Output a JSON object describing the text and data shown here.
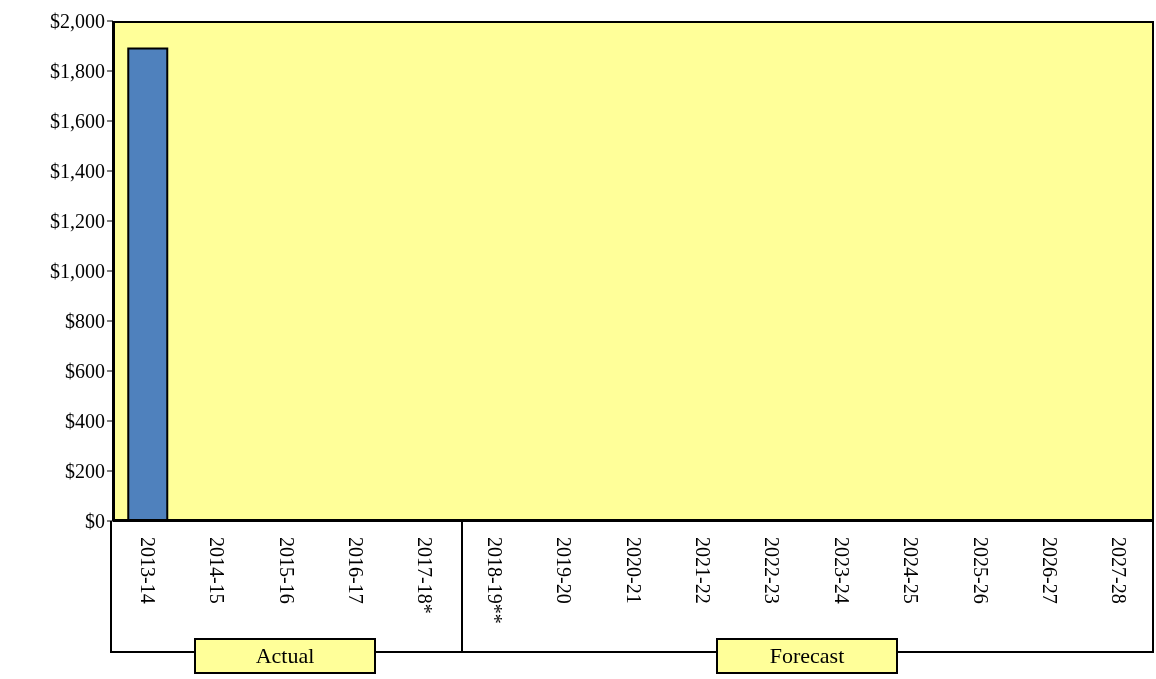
{
  "chart_data": {
    "type": "bar",
    "categories": [
      "2013-14",
      "2014-15",
      "2015-16",
      "2016-17",
      "2017-18*",
      "2018-19**",
      "2019-20",
      "2020-21",
      "2021-22",
      "2022-23",
      "2023-24",
      "2024-25",
      "2025-26",
      "2026-27",
      "2027-28"
    ],
    "values": [
      1890,
      null,
      null,
      null,
      null,
      null,
      null,
      null,
      null,
      null,
      null,
      null,
      null,
      null,
      null
    ],
    "color": "#4f81bd",
    "ylim": [
      0,
      2000
    ],
    "yticks": [
      {
        "value": 0,
        "label": "$0"
      },
      {
        "value": 200,
        "label": "$200"
      },
      {
        "value": 400,
        "label": "$400"
      },
      {
        "value": 600,
        "label": "$600"
      },
      {
        "value": 800,
        "label": "$800"
      },
      {
        "value": 1000,
        "label": "$1,000"
      },
      {
        "value": 1200,
        "label": "$1,200"
      },
      {
        "value": 1400,
        "label": "$1,400"
      },
      {
        "value": 1600,
        "label": "$1,600"
      },
      {
        "value": 1800,
        "label": "$1,800"
      },
      {
        "value": 2000,
        "label": "$2,000"
      }
    ],
    "annotations": [
      "Actual",
      "Forecast"
    ]
  }
}
